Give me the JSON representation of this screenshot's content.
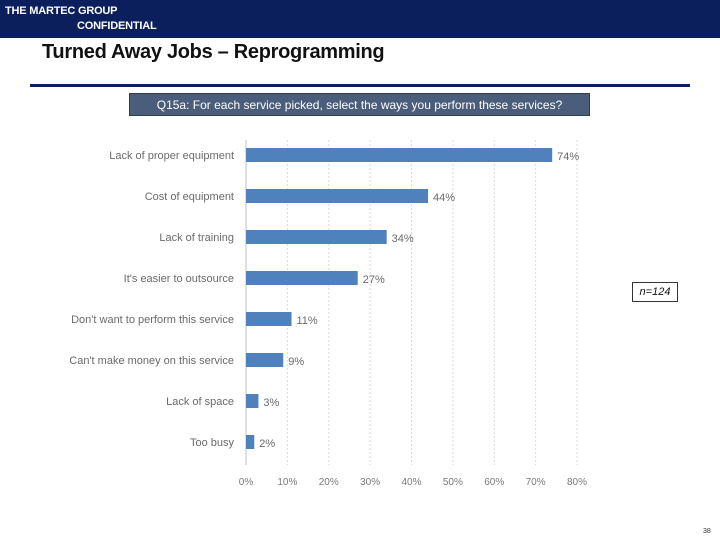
{
  "header": {
    "company": "THE MARTEC GROUP",
    "confidential": "CONFIDENTIAL"
  },
  "page_title": "Turned Away Jobs – Reprogramming",
  "question": "Q15a: For each service picked, select the ways you perform these services?",
  "sample_size": "n=124",
  "page_number": "38",
  "colors": {
    "header_bg": "#0a1f5c",
    "bar": "#4f81bd",
    "question_bg": "#4a5d7a"
  },
  "chart_data": {
    "type": "bar",
    "orientation": "horizontal",
    "title": "",
    "xlabel": "",
    "ylabel": "",
    "xlim": [
      0,
      80
    ],
    "grid": true,
    "categories": [
      "Lack of proper equipment",
      "Cost of equipment",
      "Lack of training",
      "It's easier to outsource",
      "Don't want to perform this service",
      "Can't make money on this service",
      "Lack of space",
      "Too busy"
    ],
    "values": [
      74,
      44,
      34,
      27,
      11,
      9,
      3,
      2
    ],
    "value_labels": [
      "74%",
      "44%",
      "34%",
      "27%",
      "11%",
      "9%",
      "3%",
      "2%"
    ],
    "ticks": [
      0,
      10,
      20,
      30,
      40,
      50,
      60,
      70,
      80
    ],
    "tick_labels": [
      "0%",
      "10%",
      "20%",
      "30%",
      "40%",
      "50%",
      "60%",
      "70%",
      "80%"
    ]
  }
}
